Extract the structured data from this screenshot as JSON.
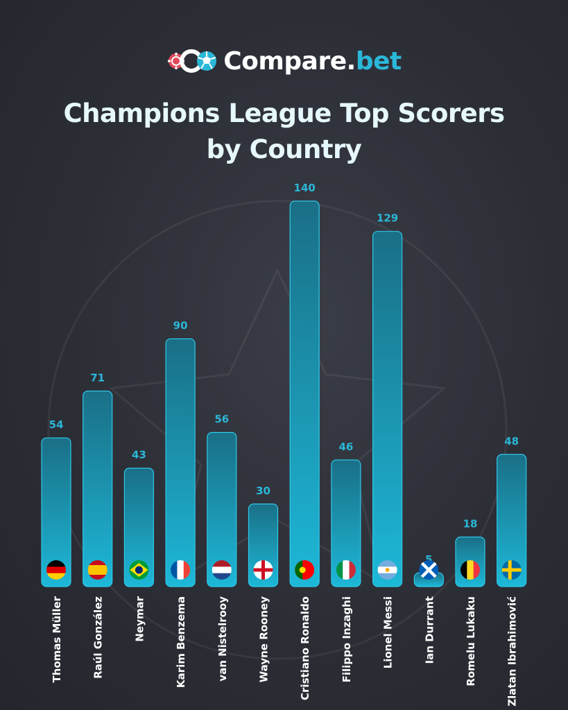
{
  "brand": {
    "name_main": "Compare.",
    "name_accent": "bet",
    "logo_icons": [
      "casino-chip-icon",
      "coin-icon",
      "football-icon"
    ],
    "colors": {
      "white": "#ffffff",
      "accent": "#2ab7d8",
      "chip": "#e0495a"
    }
  },
  "title": {
    "line1": "Champions League Top Scorers",
    "line2": "by Country"
  },
  "colors": {
    "background": "#2c2e36",
    "bar_top": "#1a6f86",
    "bar_bottom": "#1db8d8",
    "bar_stroke": "#2ec9ea",
    "value_text": "#2ab7d8",
    "label_text": "#ffffff"
  },
  "chart_data": {
    "type": "bar",
    "title": "Champions League Top Scorers by Country",
    "xlabel": "",
    "ylabel": "",
    "grid": false,
    "legend": "none",
    "categories": [
      "Thomas Müller",
      "Raúl González",
      "Neymar",
      "Karim Benzema",
      "van Nistelrooy",
      "Wayne Rooney",
      "Cristiano Ronaldo",
      "Filippo Inzaghi",
      "Lionel Messi",
      "Ian Durrant",
      "Romelu Lukaku",
      "Zlatan Ibrahimović"
    ],
    "values": [
      54,
      71,
      43,
      90,
      56,
      30,
      140,
      46,
      129,
      5,
      18,
      48
    ],
    "countries": [
      "germany",
      "spain",
      "brazil",
      "france",
      "netherlands",
      "england",
      "portugal",
      "italy",
      "argentina",
      "scotland",
      "belgium",
      "sweden"
    ],
    "ylim": [
      0,
      140
    ]
  }
}
